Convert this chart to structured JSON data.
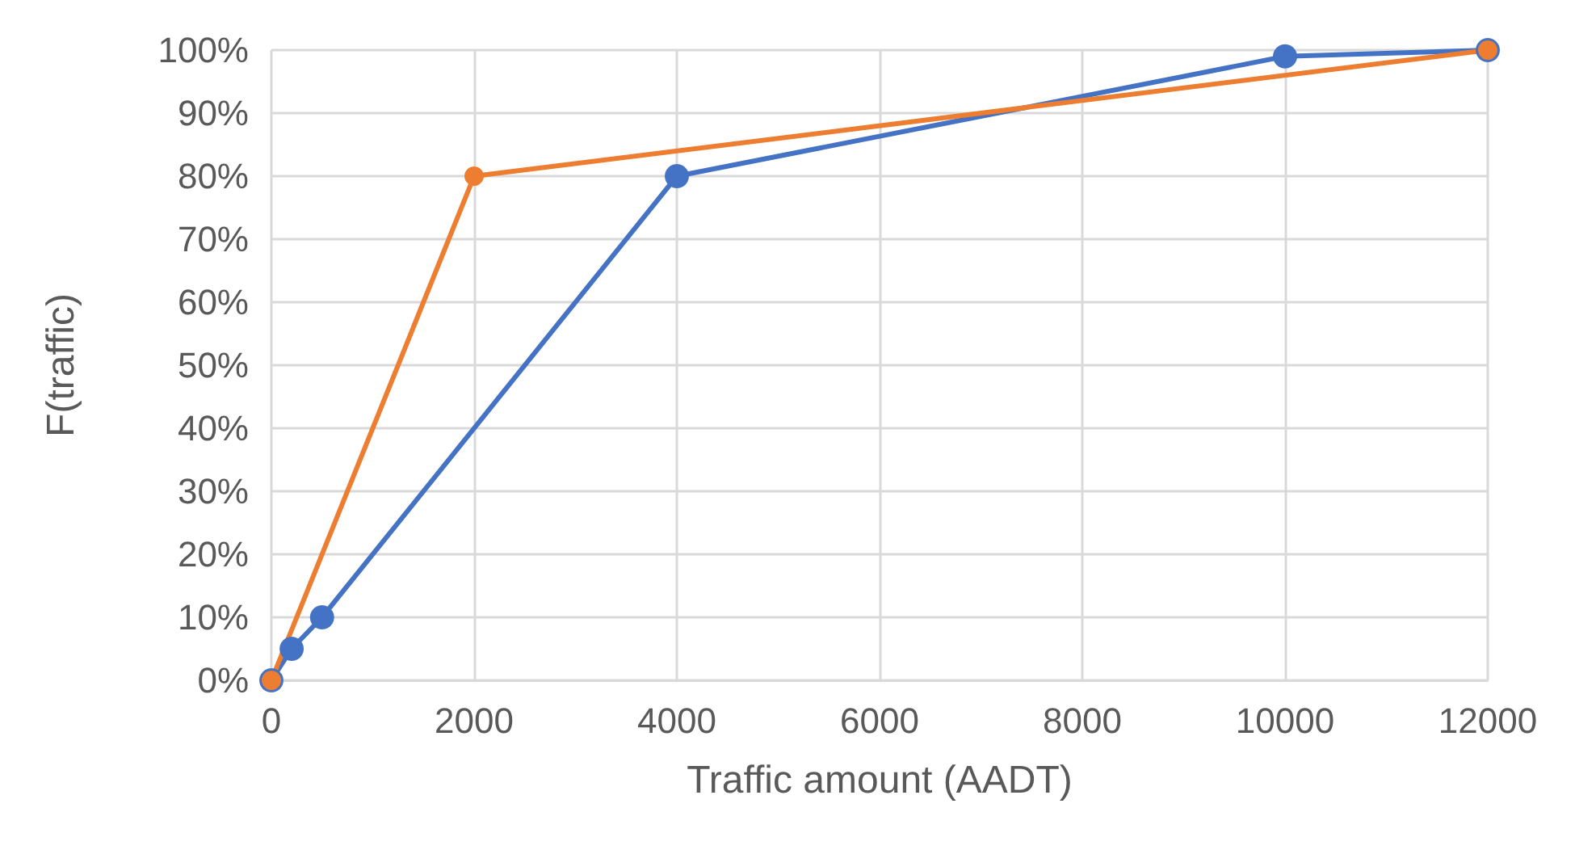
{
  "chart_data": {
    "type": "line",
    "xlabel": "Traffic amount (AADT)",
    "ylabel": "F(traffic)",
    "series": [
      {
        "color": "#4472c4",
        "x": [
          0,
          200,
          500,
          4000,
          10000,
          12000
        ],
        "values": [
          0,
          5,
          10,
          80,
          99,
          100
        ]
      },
      {
        "color": "#ed7d31",
        "x": [
          0,
          2000,
          12000
        ],
        "values": [
          0,
          80,
          100
        ]
      }
    ],
    "xlim": [
      0,
      12000
    ],
    "xticks": [
      0,
      2000,
      4000,
      6000,
      8000,
      10000,
      12000
    ],
    "ylim": [
      0,
      100
    ],
    "yticks": [
      {
        "value": 0,
        "label": "0%"
      },
      {
        "value": 10,
        "label": "10%"
      },
      {
        "value": 20,
        "label": "20%"
      },
      {
        "value": 30,
        "label": "30%"
      },
      {
        "value": 40,
        "label": "40%"
      },
      {
        "value": 50,
        "label": "50%"
      },
      {
        "value": 60,
        "label": "60%"
      },
      {
        "value": 70,
        "label": "70%"
      },
      {
        "value": 80,
        "label": "80%"
      },
      {
        "value": 90,
        "label": "90%"
      },
      {
        "value": 100,
        "label": "100%"
      }
    ],
    "grid": true,
    "marker": "circle",
    "line_style": "solid"
  }
}
